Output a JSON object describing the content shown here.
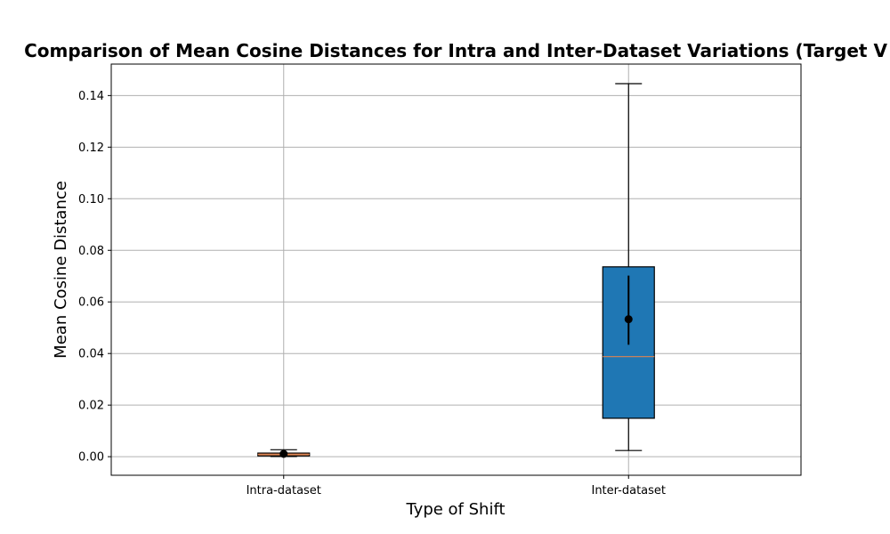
{
  "chart_data": {
    "type": "box",
    "title": "Comparison of Mean Cosine Distances for Intra and Inter-Dataset Variations (Target V",
    "xlabel": "Type of Shift",
    "ylabel": "Mean Cosine Distance",
    "ylim": [
      -0.0072,
      0.1522
    ],
    "yticks": [
      0.0,
      0.02,
      0.04,
      0.06,
      0.08,
      0.1,
      0.12,
      0.14
    ],
    "ytick_labels": [
      "0.00",
      "0.02",
      "0.04",
      "0.06",
      "0.08",
      "0.10",
      "0.12",
      "0.14"
    ],
    "grid": true,
    "categories": [
      "Intra-dataset",
      "Inter-dataset"
    ],
    "boxes": [
      {
        "category": "Intra-dataset",
        "whisker_low": 0.0001,
        "q1": 0.0003,
        "median": 0.0009,
        "q3": 0.0014,
        "whisker_high": 0.0027,
        "mean": 0.0011,
        "err_low": 0.0007,
        "err_high": 0.0015,
        "color": "#dd8452"
      },
      {
        "category": "Inter-dataset",
        "whisker_low": 0.0024,
        "q1": 0.0149,
        "median": 0.0388,
        "q3": 0.0736,
        "whisker_high": 0.1446,
        "mean": 0.0533,
        "err_low": 0.0434,
        "err_high": 0.0702,
        "color": "#1f77b4"
      }
    ],
    "colors": {
      "grid": "#b0b0b0",
      "median": "#dd8452",
      "mean_marker": "#000000"
    }
  }
}
